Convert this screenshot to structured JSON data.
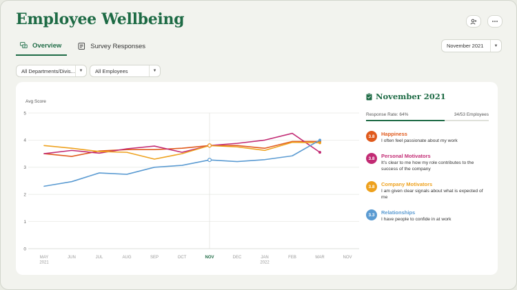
{
  "header": {
    "title": "Employee Wellbeing",
    "add_user_icon": "add-user-icon",
    "more_icon": "more-icon"
  },
  "tabs": [
    {
      "label": "Overview",
      "icon": "chat-bubbles-icon",
      "active": true
    },
    {
      "label": "Survey Responses",
      "icon": "document-icon",
      "active": false
    }
  ],
  "period_select": {
    "value": "November 2021"
  },
  "filters": {
    "department": "All Departments/Divis...",
    "employees": "All Employees"
  },
  "colors": {
    "brand": "#1e6b45",
    "happiness": "#e05a1c",
    "personal": "#c22b74",
    "company": "#eea11d",
    "relationships": "#5b9bd2"
  },
  "chart_data": {
    "type": "line",
    "ylabel": "Avg Score",
    "ylim": [
      0,
      5
    ],
    "yticks": [
      "0",
      "1",
      "2",
      "3",
      "4",
      "5"
    ],
    "x": [
      "MAY 2021",
      "JUN",
      "JUL",
      "AUG",
      "SEP",
      "OCT",
      "NOV",
      "DEC",
      "JAN 2022",
      "FEB",
      "MAR",
      "NOV"
    ],
    "xticks": [
      {
        "label": "MAY",
        "sub": "2021"
      },
      {
        "label": "JUN",
        "sub": ""
      },
      {
        "label": "JUL",
        "sub": ""
      },
      {
        "label": "AUG",
        "sub": ""
      },
      {
        "label": "SEP",
        "sub": ""
      },
      {
        "label": "OCT",
        "sub": ""
      },
      {
        "label": "NOV",
        "sub": "",
        "highlight": true
      },
      {
        "label": "DEC",
        "sub": ""
      },
      {
        "label": "JAN",
        "sub": "2022"
      },
      {
        "label": "FEB",
        "sub": ""
      },
      {
        "label": "MAR",
        "sub": ""
      },
      {
        "label": "NOV",
        "sub": ""
      }
    ],
    "selected_index": 6,
    "series": [
      {
        "name": "Happiness",
        "color": "#e05a1c",
        "values": [
          3.5,
          3.4,
          3.6,
          3.65,
          3.65,
          3.7,
          3.8,
          3.8,
          3.7,
          3.95,
          3.95,
          null
        ]
      },
      {
        "name": "Personal Motivators",
        "color": "#c22b74",
        "values": [
          3.5,
          3.62,
          3.52,
          3.68,
          3.78,
          3.55,
          3.8,
          3.88,
          4.0,
          4.25,
          3.55,
          null
        ]
      },
      {
        "name": "Company Motivators",
        "color": "#eea11d",
        "values": [
          3.8,
          3.7,
          3.58,
          3.55,
          3.3,
          3.5,
          3.8,
          3.75,
          3.62,
          3.92,
          3.9,
          null
        ]
      },
      {
        "name": "Relationships",
        "color": "#5b9bd2",
        "values": [
          2.3,
          2.47,
          2.79,
          2.74,
          3.0,
          3.07,
          3.27,
          3.21,
          3.28,
          3.42,
          4.0,
          null
        ]
      }
    ]
  },
  "panel": {
    "title": "November 2021",
    "response_rate_label": "Response Rate: 64%",
    "response_rate": 0.64,
    "employees_label": "34/53 Employees",
    "metrics": [
      {
        "score": "3.8",
        "name": "Happiness",
        "desc": "I often feel passionate about my work",
        "color": "#e05a1c"
      },
      {
        "score": "3.8",
        "name": "Personal Motivators",
        "desc": "It's clear to me how my role contributes to the success of the company",
        "color": "#c22b74"
      },
      {
        "score": "3.8",
        "name": "Company Motivators",
        "desc": "I am given clear signals about what is expected of me",
        "color": "#eea11d"
      },
      {
        "score": "3.3",
        "name": "Relationships",
        "desc": "I have people to confide in at work",
        "color": "#5b9bd2"
      }
    ]
  }
}
